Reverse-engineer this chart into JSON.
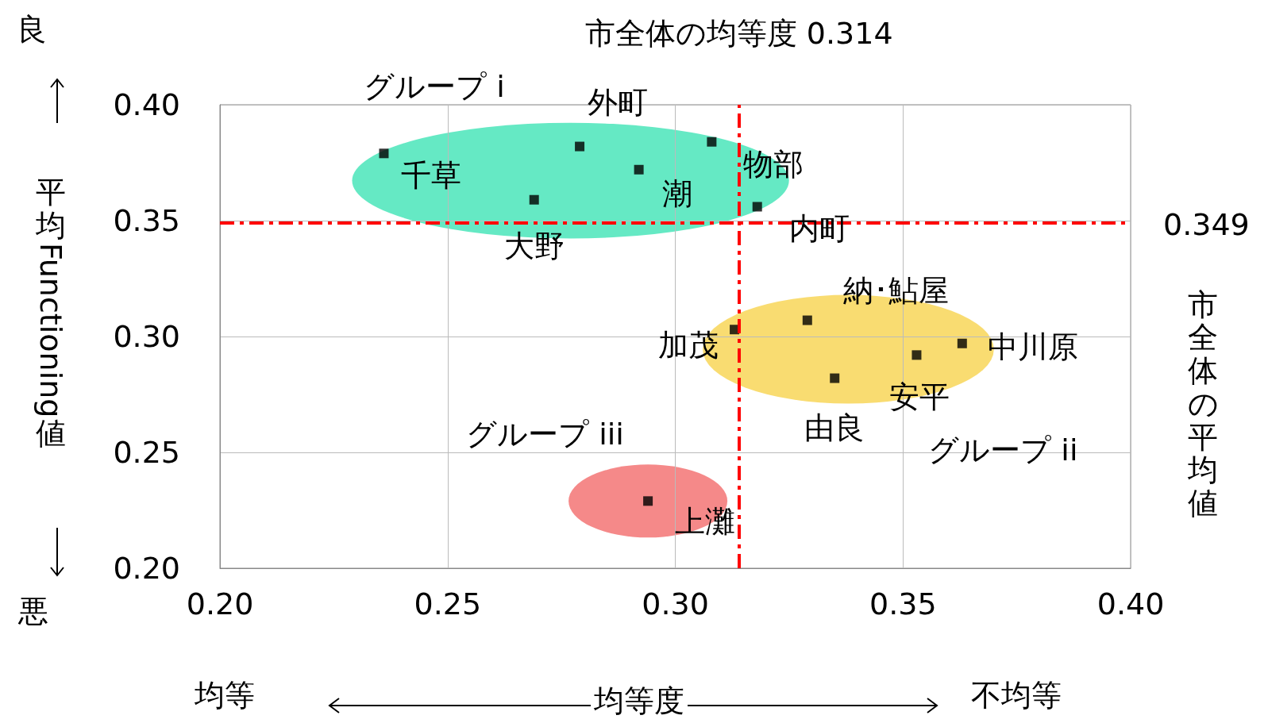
{
  "chart_data": {
    "type": "scatter",
    "xlabel": "均等度",
    "ylabel": "平均Functioning値",
    "xlim": [
      0.2,
      0.4
    ],
    "ylim": [
      0.2,
      0.4
    ],
    "xticks": [
      {
        "value": 0.2,
        "label": "0.20"
      },
      {
        "value": 0.25,
        "label": "0.25"
      },
      {
        "value": 0.3,
        "label": "0.30"
      },
      {
        "value": 0.35,
        "label": "0.35"
      },
      {
        "value": 0.4,
        "label": "0.40"
      }
    ],
    "yticks": [
      {
        "value": 0.2,
        "label": "0.20"
      },
      {
        "value": 0.25,
        "label": "0.25"
      },
      {
        "value": 0.3,
        "label": "0.30"
      },
      {
        "value": 0.35,
        "label": "0.35"
      },
      {
        "value": 0.4,
        "label": "0.40"
      }
    ],
    "grid": true,
    "legend": false,
    "marker": "square",
    "series": [
      {
        "name": "グループ i",
        "color": "#000000",
        "x": [
          0.236,
          0.279,
          0.292,
          0.308,
          0.269,
          0.318
        ],
        "values": [
          0.379,
          0.382,
          0.372,
          0.384,
          0.359,
          0.356
        ]
      },
      {
        "name": "グループ ii",
        "color": "#000000",
        "x": [
          0.313,
          0.329,
          0.353,
          0.363,
          0.335
        ],
        "values": [
          0.303,
          0.307,
          0.292,
          0.297,
          0.282
        ]
      },
      {
        "name": "グループ iii",
        "color": "#000000",
        "x": [
          0.294
        ],
        "values": [
          0.229
        ]
      }
    ],
    "ref_lines": [
      {
        "axis": "x",
        "value": 0.314,
        "label": "市全体の均等度 0.314",
        "color": "#ff0000",
        "line_style": "dashed"
      },
      {
        "axis": "y",
        "value": 0.349,
        "label": "0.349",
        "color": "#ff0000",
        "line_style": "dashed"
      }
    ],
    "annotations": [
      {
        "text": "千草",
        "x": 0.236,
        "y": 0.379
      },
      {
        "text": "外町",
        "x": 0.279,
        "y": 0.382
      },
      {
        "text": "潮",
        "x": 0.292,
        "y": 0.372
      },
      {
        "text": "物部",
        "x": 0.308,
        "y": 0.384
      },
      {
        "text": "大野",
        "x": 0.269,
        "y": 0.359
      },
      {
        "text": "内町",
        "x": 0.318,
        "y": 0.356
      },
      {
        "text": "加茂",
        "x": 0.313,
        "y": 0.303
      },
      {
        "text": "納･鮎屋",
        "x": 0.329,
        "y": 0.307
      },
      {
        "text": "中川原",
        "x": 0.363,
        "y": 0.297
      },
      {
        "text": "安平",
        "x": 0.353,
        "y": 0.292
      },
      {
        "text": "由良",
        "x": 0.335,
        "y": 0.282
      },
      {
        "text": "上灘",
        "x": 0.294,
        "y": 0.229
      },
      "良",
      "悪",
      "均等",
      "不均等",
      "市全体の平均値"
    ]
  }
}
